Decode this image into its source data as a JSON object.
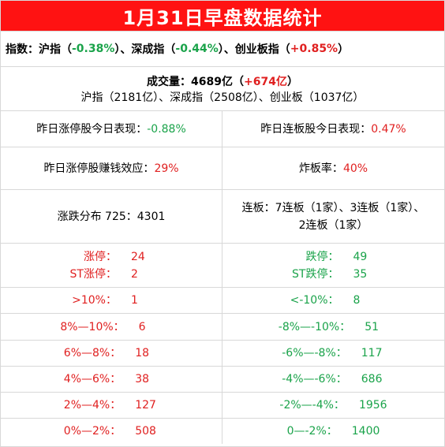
{
  "title": "1月31日早盘数据统计",
  "indices": {
    "prefix": "指数：",
    "sh_label": "沪指（",
    "sh_value": "-0.38%",
    "sz_label": "）、深成指（",
    "sz_value": "-0.44%",
    "cy_label": "）、创业板指（",
    "cy_value": "+0.85%",
    "suffix": "）"
  },
  "volume": {
    "label": "成交量：4689亿（",
    "change": "+674亿",
    "suffix": "）",
    "breakdown": "沪指（2181亿）、深成指（2508亿）、创业板（1037亿）"
  },
  "stats": {
    "limit_up_perf_label": "昨日涨停股今日表现：",
    "limit_up_perf_value": "-0.88%",
    "streak_perf_label": "昨日连板股今日表现：",
    "streak_perf_value": "0.47%",
    "money_effect_label": "昨日涨停股赚钱效应：",
    "money_effect_value": "29%",
    "break_rate_label": "炸板率：",
    "break_rate_value": "40%",
    "distribution": "涨跌分布 725：4301",
    "streak_line1": "连板：7连板（1家）、3连板（1家）、",
    "streak_line2": "2连板（1家）"
  },
  "limits": {
    "up_label": "涨停：",
    "up_value": "24",
    "st_up_label": "ST涨停：",
    "st_up_value": "2",
    "down_label": "跌停：",
    "down_value": "49",
    "st_down_label": "ST跌停：",
    "st_down_value": "35"
  },
  "ranges": {
    "up": [
      {
        "label": ">10%：",
        "value": "1"
      },
      {
        "label": "8%—10%：",
        "value": "6"
      },
      {
        "label": "6%—8%：",
        "value": "18"
      },
      {
        "label": "4%—6%：",
        "value": "38"
      },
      {
        "label": "2%—4%：",
        "value": "127"
      },
      {
        "label": "0%—2%：",
        "value": "508"
      }
    ],
    "down": [
      {
        "label": "<-10%：",
        "value": "8"
      },
      {
        "label": "-8%—-10%：",
        "value": "51"
      },
      {
        "label": "-6%—-8%：",
        "value": "117"
      },
      {
        "label": "-4%—-6%：",
        "value": "686"
      },
      {
        "label": "-2%—-4%：",
        "value": "1956"
      },
      {
        "label": "0—-2%：",
        "value": "1400"
      }
    ]
  },
  "colors": {
    "title_bg": "#ff1212",
    "up": "#e02020",
    "down": "#1aa34a"
  }
}
